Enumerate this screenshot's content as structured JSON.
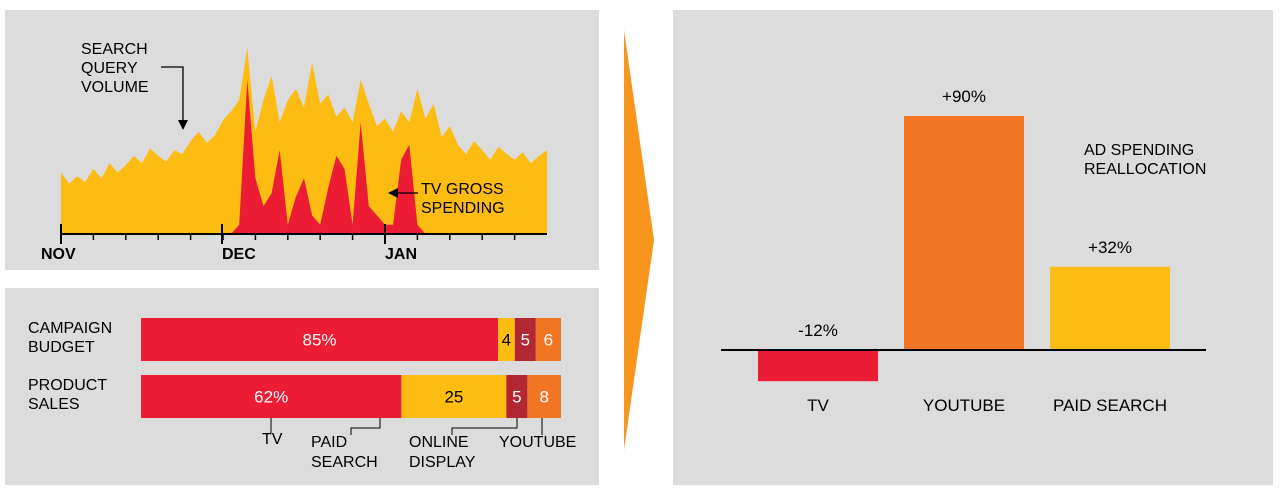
{
  "colors": {
    "panel_bg": "#dcdcdc",
    "tv": "#eb1c34",
    "paid_search": "#fdbc12",
    "online_display": "#b32732",
    "youtube": "#f27524",
    "arrow": "#f7951d",
    "axis": "#000000"
  },
  "chart_data": [
    {
      "type": "area",
      "x_tick_labels": [
        "NOV",
        "DEC",
        "JAN"
      ],
      "annotations": {
        "search_line1": "SEARCH",
        "search_line2": "QUERY",
        "search_line3": "VOLUME",
        "tv_line1": "TV GROSS",
        "tv_line2": "SPENDING"
      },
      "series": [
        {
          "name": "SEARCH QUERY VOLUME",
          "values": [
            0.33,
            0.27,
            0.31,
            0.28,
            0.35,
            0.3,
            0.38,
            0.33,
            0.37,
            0.42,
            0.38,
            0.46,
            0.42,
            0.39,
            0.45,
            0.43,
            0.5,
            0.55,
            0.49,
            0.53,
            0.61,
            0.66,
            0.72,
            1.0,
            0.55,
            0.72,
            0.85,
            0.6,
            0.72,
            0.78,
            0.68,
            0.92,
            0.7,
            0.75,
            0.63,
            0.68,
            0.6,
            0.83,
            0.7,
            0.58,
            0.62,
            0.55,
            0.66,
            0.6,
            0.78,
            0.62,
            0.7,
            0.52,
            0.58,
            0.48,
            0.43,
            0.5,
            0.45,
            0.4,
            0.47,
            0.43,
            0.4,
            0.44,
            0.38,
            0.42,
            0.45
          ]
        },
        {
          "name": "TV GROSS SPENDING",
          "values": [
            0,
            0,
            0,
            0,
            0,
            0,
            0,
            0,
            0,
            0,
            0,
            0,
            0,
            0,
            0,
            0,
            0,
            0,
            0,
            0,
            0,
            0,
            0.05,
            0.83,
            0.3,
            0.15,
            0.22,
            0.45,
            0.05,
            0.2,
            0.3,
            0.1,
            0.05,
            0.25,
            0.42,
            0.35,
            0.05,
            0.6,
            0.15,
            0.1,
            0.05,
            0.05,
            0.4,
            0.48,
            0.05,
            0,
            0,
            0,
            0,
            0,
            0,
            0,
            0,
            0,
            0,
            0,
            0,
            0,
            0,
            0,
            0
          ]
        }
      ]
    },
    {
      "type": "bar",
      "orientation": "horizontal",
      "stacked": true,
      "categories": [
        {
          "line1": "CAMPAIGN",
          "line2": "BUDGET"
        },
        {
          "line1": "PRODUCT",
          "line2": "SALES"
        }
      ],
      "series": [
        {
          "key": "tv",
          "values": [
            85,
            62
          ],
          "labels": [
            "85%",
            "62%"
          ]
        },
        {
          "key": "paid_search",
          "values": [
            4,
            25
          ],
          "labels": [
            "4",
            "25"
          ]
        },
        {
          "key": "online_display",
          "values": [
            5,
            5
          ],
          "labels": [
            "5",
            "5"
          ]
        },
        {
          "key": "youtube",
          "values": [
            6,
            8
          ],
          "labels": [
            "6",
            "8"
          ]
        }
      ],
      "legend": {
        "tv": "TV",
        "paid_search_line1": "PAID",
        "paid_search_line2": "SEARCH",
        "online_display_line1": "ONLINE",
        "online_display_line2": "DISPLAY",
        "youtube": "YOUTUBE"
      }
    },
    {
      "type": "bar",
      "title_line1": "AD SPENDING",
      "title_line2": "REALLOCATION",
      "categories": [
        "TV",
        "YOUTUBE",
        "PAID SEARCH"
      ],
      "values": [
        -12,
        90,
        32
      ],
      "value_labels": [
        "-12%",
        "+90%",
        "+32%"
      ],
      "ylim": [
        -12,
        90
      ]
    }
  ]
}
